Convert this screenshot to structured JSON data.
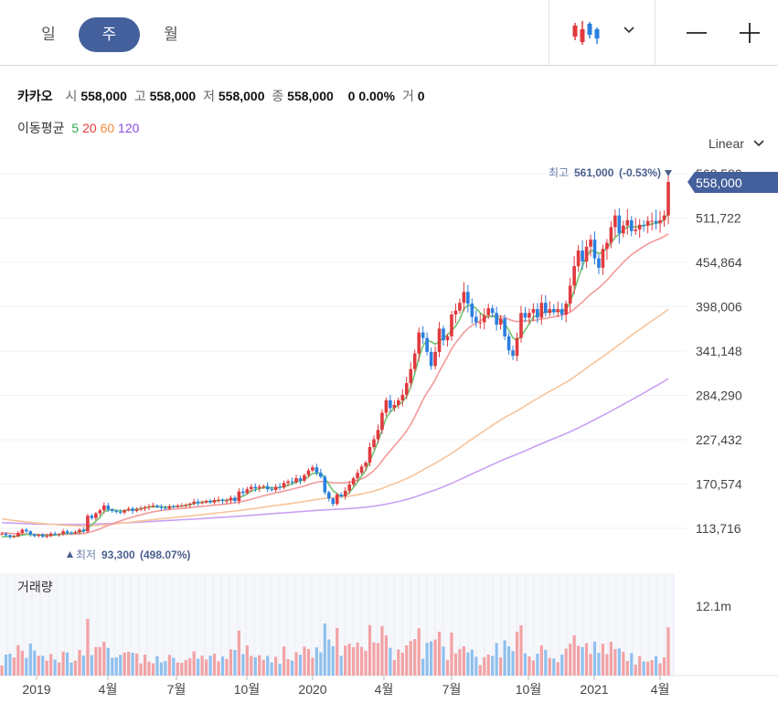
{
  "tabs": [
    {
      "label": "일",
      "active": false
    },
    {
      "label": "주",
      "active": true
    },
    {
      "label": "월",
      "active": false
    }
  ],
  "icons": {
    "chart_type": "candlestick-icon",
    "dropdown": "chevron-down-icon",
    "zoom_out": "minus-icon",
    "zoom_in": "plus-icon"
  },
  "info": {
    "name": "카카오",
    "open_label": "시",
    "open": "558,000",
    "high_label": "고",
    "high": "558,000",
    "low_label": "저",
    "low": "558,000",
    "close_label": "종",
    "close": "558,000",
    "change": "0",
    "change_pct": "0.00%",
    "volume_label": "거",
    "volume": "0"
  },
  "moving_average": {
    "label": "이동평균",
    "periods": [
      {
        "value": "5",
        "color": "#2fa84f"
      },
      {
        "value": "20",
        "color": "#e83b3b"
      },
      {
        "value": "60",
        "color": "#f08a3c"
      },
      {
        "value": "120",
        "color": "#8a4de0"
      }
    ]
  },
  "scale_label": "Linear",
  "colors": {
    "up": "#e03a3e",
    "down": "#2a7fe0",
    "accent": "#43609c",
    "ma5": "#6fc36f",
    "ma20": "#f39a9a",
    "ma60": "#f7c49a",
    "ma120": "#c9a0f2"
  },
  "chart_data": {
    "type": "candlestick",
    "y_axis_ticks": [
      "568,580",
      "511,722",
      "454,864",
      "398,006",
      "341,148",
      "284,290",
      "227,432",
      "170,574",
      "113,716"
    ],
    "ylim": [
      113716,
      568580
    ],
    "x_axis_ticks": [
      "2019",
      "4월",
      "7월",
      "10월",
      "2020",
      "4월",
      "7월",
      "10월",
      "2021",
      "4월"
    ],
    "current_price_label": "558,000",
    "high_annotation": {
      "label": "최고",
      "value": "561,000",
      "pct": "(-0.53%)"
    },
    "low_annotation": {
      "label": "최저",
      "value": "93,300",
      "pct": "(498.07%)"
    },
    "volume_panel": {
      "label": "거래량",
      "tick": "12.1m"
    },
    "closes": [
      107000,
      105000,
      103000,
      103500,
      108000,
      112000,
      110000,
      106000,
      104000,
      105500,
      103000,
      104000,
      107000,
      106000,
      106500,
      110000,
      108000,
      107500,
      109000,
      112000,
      110000,
      130000,
      127000,
      133000,
      137000,
      143000,
      138000,
      136000,
      135000,
      134000,
      137000,
      139000,
      136000,
      138000,
      139000,
      141000,
      142000,
      143000,
      141000,
      140000,
      139000,
      142000,
      141500,
      143000,
      143000,
      144000,
      145500,
      148000,
      146000,
      147000,
      149000,
      147000,
      150000,
      150500,
      149000,
      149500,
      153000,
      149000,
      161000,
      159000,
      164000,
      167000,
      165000,
      167000,
      168000,
      164000,
      163000,
      167000,
      166000,
      172000,
      174000,
      173000,
      178000,
      175000,
      182000,
      188000,
      192000,
      185000,
      180000,
      160000,
      152000,
      145000,
      157000,
      155000,
      162000,
      170000,
      178000,
      185000,
      193000,
      198000,
      218000,
      228000,
      240000,
      262000,
      278000,
      268000,
      272000,
      278000,
      285000,
      300000,
      318000,
      338000,
      365000,
      358000,
      340000,
      322000,
      340000,
      370000,
      355000,
      360000,
      388000,
      393000,
      403000,
      417000,
      402000,
      385000,
      378000,
      378000,
      387000,
      396000,
      390000,
      375000,
      383000,
      360000,
      342000,
      335000,
      358000,
      390000,
      384000,
      390000,
      395000,
      384000,
      403000,
      390000,
      395000,
      391000,
      395000,
      388000,
      402000,
      425000,
      450000,
      470000,
      456000,
      475000,
      484000,
      460000,
      448000,
      472000,
      480000,
      500000,
      515000,
      492000,
      502000,
      509000,
      495000,
      497000,
      503000,
      502000,
      508000,
      508000,
      505000,
      509000,
      515000,
      558000
    ],
    "ma5": [
      103000,
      103000,
      103200,
      103500,
      104000,
      105000,
      106000,
      106000,
      105500,
      105500,
      105000,
      104500,
      104800,
      105200,
      105800,
      106800,
      107200,
      107400,
      108000,
      109000,
      110000,
      114000,
      118000,
      123000,
      128000,
      135000,
      137000,
      138000,
      137000,
      136000,
      136500,
      137500,
      137800,
      138400,
      139000,
      140000,
      141000,
      141500,
      141800,
      141500,
      141200,
      141300,
      141500,
      141800,
      142200,
      143000,
      144000,
      145500,
      146500,
      147200,
      148000,
      148300,
      149000,
      149500,
      149500,
      149800,
      150600,
      151000,
      153000,
      155000,
      158000,
      162000,
      163000,
      165000,
      166000,
      166000,
      165500,
      165800,
      166200,
      167500,
      169000,
      171000,
      173000,
      174500,
      176500,
      180000,
      184000,
      184500,
      184500,
      178000,
      170000,
      162000,
      158000,
      155000,
      156000,
      160000,
      166000,
      173000,
      181000,
      188000,
      200000,
      212000,
      225000,
      240000,
      255000,
      263000,
      268000,
      272000,
      276000,
      283000,
      295000,
      312000,
      332000,
      348000,
      355000,
      353000,
      350000,
      353000,
      358000,
      362000,
      367000,
      373000,
      382000,
      395000,
      400000,
      399000,
      396000,
      390000,
      386000,
      385000,
      386000,
      384000,
      382000,
      376000,
      368000,
      358000,
      355000,
      360000,
      368000,
      376000,
      385000,
      387000,
      390000,
      391000,
      392000,
      392000,
      392000,
      392000,
      394000,
      404000,
      418000,
      435000,
      450000,
      462000,
      470000,
      469000,
      466000,
      468000,
      473000,
      480000,
      487000,
      491000,
      497000,
      500000,
      501000,
      500000,
      501000,
      502000,
      503000,
      504000,
      505000,
      506000,
      509000,
      519000
    ],
    "ma20": [
      108000,
      107700,
      107400,
      107000,
      106800,
      106600,
      106500,
      106300,
      106100,
      106000,
      105800,
      105700,
      105700,
      105700,
      105800,
      106000,
      106100,
      106200,
      106500,
      106800,
      107000,
      108200,
      109500,
      111200,
      113000,
      115500,
      117500,
      119500,
      121500,
      123300,
      125000,
      126800,
      128200,
      129800,
      131200,
      132500,
      133800,
      135000,
      135800,
      136600,
      137200,
      137800,
      138300,
      138800,
      139300,
      139800,
      140300,
      140900,
      141500,
      142000,
      142600,
      143000,
      143500,
      144000,
      144600,
      145000,
      145800,
      146500,
      147500,
      148500,
      149700,
      151000,
      152500,
      154000,
      155500,
      156800,
      158000,
      159200,
      160300,
      161500,
      162800,
      164000,
      165400,
      166700,
      168100,
      169900,
      171600,
      172800,
      173800,
      173600,
      173000,
      172300,
      172100,
      172000,
      172200,
      172800,
      173800,
      175300,
      177300,
      179700,
      183500,
      188100,
      193600,
      200200,
      207200,
      213300,
      219400,
      225500,
      231800,
      238800,
      246900,
      256700,
      268000,
      278700,
      287700,
      295600,
      304500,
      315000,
      324500,
      334000,
      344000,
      351500,
      358500,
      365000,
      370000,
      374000,
      377000,
      380000,
      383000,
      385500,
      386500,
      386000,
      385500,
      384000,
      382000,
      380000,
      379000,
      379500,
      380000,
      380000,
      380500,
      381000,
      382500,
      383000,
      384000,
      385000,
      386000,
      387000,
      388500,
      391000,
      395000,
      399500,
      404000,
      409000,
      414000,
      418000,
      422000,
      427000,
      432000,
      438000,
      444000,
      449000,
      455000,
      460000,
      464500,
      468500,
      472000,
      475500,
      478500,
      481000,
      483500,
      485500,
      488000,
      491500
    ],
    "ma60": [
      126000,
      125200,
      124500,
      123800,
      123200,
      122600,
      122000,
      121400,
      120900,
      120400,
      119900,
      119400,
      119000,
      118600,
      118200,
      117900,
      117600,
      117300,
      117100,
      116900,
      116700,
      116900,
      117100,
      117400,
      117800,
      118200,
      118700,
      119200,
      119700,
      120200,
      120800,
      121400,
      122000,
      122600,
      123200,
      123800,
      124400,
      125000,
      125500,
      126100,
      126600,
      127100,
      127600,
      128200,
      128700,
      129200,
      129700,
      130300,
      130800,
      131400,
      132000,
      132600,
      133100,
      133700,
      134200,
      134800,
      135400,
      136000,
      136600,
      137300,
      138000,
      138700,
      139400,
      140100,
      140900,
      141600,
      142300,
      143000,
      143700,
      144400,
      145100,
      145800,
      146600,
      147400,
      148200,
      149100,
      150000,
      150800,
      151600,
      152200,
      152700,
      153100,
      153600,
      154100,
      154600,
      155200,
      156000,
      156900,
      157900,
      159000,
      160300,
      161700,
      163300,
      165100,
      167100,
      169000,
      171000,
      173100,
      175300,
      177600,
      180100,
      182800,
      185700,
      188700,
      191600,
      194400,
      197300,
      200500,
      203500,
      206700,
      210000,
      213500,
      217200,
      221000,
      224700,
      228300,
      231800,
      235300,
      238800,
      242400,
      245900,
      249300,
      252800,
      256000,
      258800,
      261500,
      264400,
      267700,
      270900,
      274100,
      277300,
      280300,
      283400,
      286400,
      289400,
      292300,
      295200,
      298100,
      301000,
      304300,
      307900,
      311700,
      315400,
      319200,
      323100,
      326700,
      330300,
      334000,
      337800,
      341700,
      345700,
      349500,
      353500,
      357500,
      361300,
      365000,
      368800,
      372500,
      376200,
      379900,
      383500,
      387000,
      390700,
      395000
    ],
    "ma120": [
      121000,
      120800,
      120600,
      120400,
      120200,
      120000,
      119800,
      119600,
      119400,
      119300,
      119200,
      119100,
      119000,
      118900,
      118800,
      118800,
      118800,
      118800,
      118800,
      118800,
      118900,
      119000,
      119100,
      119300,
      119500,
      119700,
      119900,
      120100,
      120300,
      120500,
      120700,
      121000,
      121200,
      121500,
      121800,
      122100,
      122400,
      122700,
      123000,
      123300,
      123600,
      123900,
      124200,
      124500,
      124800,
      125100,
      125400,
      125700,
      126000,
      126300,
      126700,
      127000,
      127300,
      127700,
      128000,
      128300,
      128700,
      129000,
      129400,
      129800,
      130100,
      130500,
      130900,
      131300,
      131700,
      132100,
      132500,
      132900,
      133300,
      133700,
      134000,
      134400,
      134800,
      135200,
      135600,
      136000,
      136400,
      136800,
      137100,
      137400,
      137700,
      138000,
      138200,
      138500,
      138800,
      139100,
      139500,
      139900,
      140400,
      140900,
      141500,
      142200,
      143000,
      143900,
      144900,
      145900,
      147000,
      148200,
      149500,
      150900,
      152400,
      154000,
      155800,
      157700,
      159500,
      161200,
      163000,
      165000,
      167100,
      169300,
      171500,
      173800,
      176200,
      178700,
      181200,
      183600,
      186000,
      188300,
      190700,
      193100,
      195500,
      197900,
      200300,
      202500,
      204600,
      206700,
      208800,
      211000,
      213300,
      215600,
      217900,
      220100,
      222300,
      224500,
      226700,
      228900,
      231000,
      233200,
      235400,
      237700,
      240100,
      242600,
      245200,
      247800,
      250500,
      253200,
      255900,
      258600,
      261300,
      264100,
      267000,
      269900,
      272800,
      275700,
      278600,
      281500,
      284400,
      287400,
      290400,
      293400,
      296400,
      299400,
      302500,
      305800
    ]
  }
}
